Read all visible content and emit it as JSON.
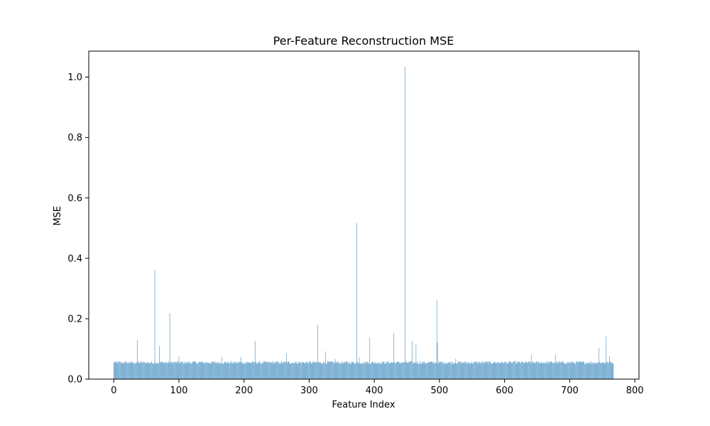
{
  "chart_data": {
    "type": "bar",
    "title": "Per-Feature Reconstruction MSE",
    "xlabel": "Feature Index",
    "ylabel": "MSE",
    "xlim": [
      -38.4,
      806.4
    ],
    "ylim": [
      0,
      1.086
    ],
    "xticks": [
      0,
      100,
      200,
      300,
      400,
      500,
      600,
      700,
      800
    ],
    "yticks": [
      0.0,
      0.2,
      0.4,
      0.6,
      0.8,
      1.0
    ],
    "ytick_labels": [
      "0.0",
      "0.2",
      "0.4",
      "0.6",
      "0.8",
      "1.0"
    ],
    "bar_color": "#1f77b4",
    "bar_alpha": 0.7,
    "grid": false,
    "n_features": 768,
    "baseline_mse": 0.055,
    "notable_values": [
      {
        "x": 36,
        "y": 0.13
      },
      {
        "x": 63,
        "y": 0.362
      },
      {
        "x": 70,
        "y": 0.11
      },
      {
        "x": 86,
        "y": 0.218
      },
      {
        "x": 100,
        "y": 0.075
      },
      {
        "x": 166,
        "y": 0.073
      },
      {
        "x": 195,
        "y": 0.074
      },
      {
        "x": 217,
        "y": 0.127
      },
      {
        "x": 265,
        "y": 0.085
      },
      {
        "x": 313,
        "y": 0.18
      },
      {
        "x": 325,
        "y": 0.092
      },
      {
        "x": 340,
        "y": 0.067
      },
      {
        "x": 373,
        "y": 0.517
      },
      {
        "x": 377,
        "y": 0.072
      },
      {
        "x": 393,
        "y": 0.137
      },
      {
        "x": 430,
        "y": 0.152
      },
      {
        "x": 447,
        "y": 1.034
      },
      {
        "x": 458,
        "y": 0.127
      },
      {
        "x": 464,
        "y": 0.114
      },
      {
        "x": 496,
        "y": 0.262
      },
      {
        "x": 497,
        "y": 0.121
      },
      {
        "x": 525,
        "y": 0.068
      },
      {
        "x": 641,
        "y": 0.08
      },
      {
        "x": 678,
        "y": 0.083
      },
      {
        "x": 745,
        "y": 0.103
      },
      {
        "x": 756,
        "y": 0.141
      },
      {
        "x": 761,
        "y": 0.077
      }
    ]
  }
}
